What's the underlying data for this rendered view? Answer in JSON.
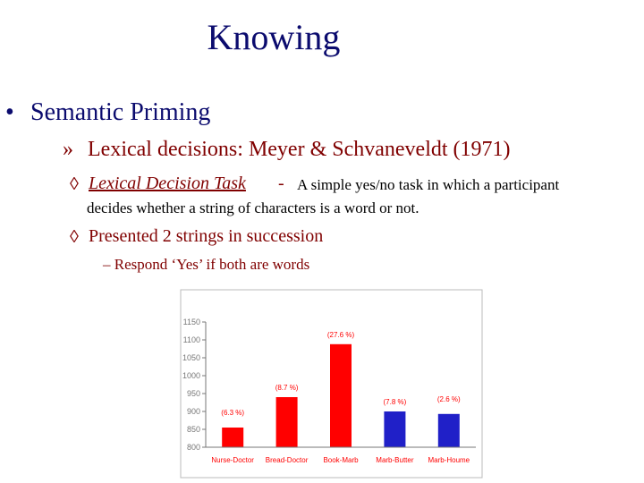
{
  "slide": {
    "title": "Knowing",
    "bullet1": {
      "marker": "•",
      "text": "Semantic Priming"
    },
    "bullet2": {
      "marker": "»",
      "text": "Lexical decisions: Meyer & Schvaneveldt (1971)"
    },
    "bullet3": {
      "marker": "◊",
      "term": "Lexical Decision Task",
      "dash": "-",
      "definition_line1": "A simple yes/no task in which a participant",
      "definition_line2": "decides whether a string of characters is a word or not."
    },
    "bullet4": {
      "marker": "◊",
      "text": "Presented 2 strings in succession"
    },
    "bullet5": {
      "text": "– Respond ‘Yes’ if both are words"
    }
  },
  "chart_data": {
    "type": "bar",
    "categories": [
      "Nurse-Doctor",
      "Bread-Doctor",
      "Book-Marb",
      "Marb-Butter",
      "Marb-Houme"
    ],
    "values": [
      855,
      940,
      1088,
      900,
      893
    ],
    "data_labels": [
      "(6.3 %)",
      "(8.7 %)",
      "(27.6 %)",
      "(7.8 %)",
      "(2.6 %)"
    ],
    "bar_colors": [
      "#ff0000",
      "#ff0000",
      "#ff0000",
      "#2020c8",
      "#2020c8"
    ],
    "ylim": [
      800,
      1150
    ],
    "yticks": [
      800,
      850,
      900,
      950,
      1000,
      1050,
      1100,
      1150
    ],
    "category_label_color": "#ff0000",
    "label_color": "#ff0000",
    "tick_color": "#777777",
    "frame_color": "#bbbbbb",
    "grid": false,
    "title": "",
    "xlabel": "",
    "ylabel": ""
  }
}
